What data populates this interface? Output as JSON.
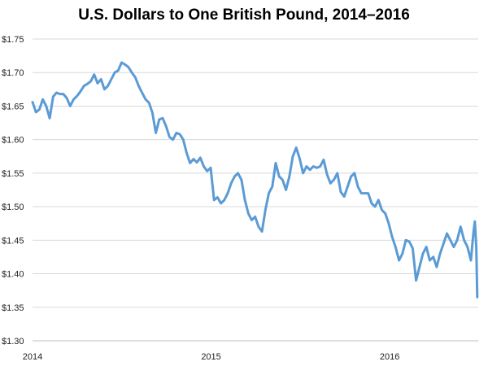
{
  "chart_data": {
    "type": "line",
    "title": "U.S. Dollars to One British Pound, 2014–2016",
    "xlabel": "",
    "ylabel": "",
    "x_tick_labels": [
      "2014",
      "2015",
      "2016"
    ],
    "y_tick_labels": [
      "$1.30",
      "$1.35",
      "$1.40",
      "$1.45",
      "$1.50",
      "$1.55",
      "$1.60",
      "$1.65",
      "$1.70",
      "$1.75"
    ],
    "ylim": [
      1.3,
      1.75
    ],
    "xlim": [
      "2014-01-01",
      "2016-06-30"
    ],
    "grid": "horizontal",
    "legend": "none",
    "series": [
      {
        "color": "#5B9BD5",
        "points": [
          [
            "2014-01-01",
            1.656
          ],
          [
            "2014-01-08",
            1.641
          ],
          [
            "2014-01-15",
            1.645
          ],
          [
            "2014-01-22",
            1.66
          ],
          [
            "2014-01-29",
            1.65
          ],
          [
            "2014-02-05",
            1.632
          ],
          [
            "2014-02-12",
            1.664
          ],
          [
            "2014-02-19",
            1.67
          ],
          [
            "2014-02-26",
            1.668
          ],
          [
            "2014-03-05",
            1.668
          ],
          [
            "2014-03-12",
            1.662
          ],
          [
            "2014-03-19",
            1.65
          ],
          [
            "2014-03-26",
            1.66
          ],
          [
            "2014-04-02",
            1.665
          ],
          [
            "2014-04-09",
            1.672
          ],
          [
            "2014-04-16",
            1.68
          ],
          [
            "2014-04-23",
            1.683
          ],
          [
            "2014-04-30",
            1.687
          ],
          [
            "2014-05-07",
            1.697
          ],
          [
            "2014-05-14",
            1.684
          ],
          [
            "2014-05-21",
            1.69
          ],
          [
            "2014-05-28",
            1.675
          ],
          [
            "2014-06-04",
            1.68
          ],
          [
            "2014-06-11",
            1.69
          ],
          [
            "2014-06-18",
            1.7
          ],
          [
            "2014-06-25",
            1.703
          ],
          [
            "2014-07-02",
            1.715
          ],
          [
            "2014-07-09",
            1.712
          ],
          [
            "2014-07-16",
            1.708
          ],
          [
            "2014-07-23",
            1.7
          ],
          [
            "2014-07-30",
            1.693
          ],
          [
            "2014-08-06",
            1.68
          ],
          [
            "2014-08-13",
            1.67
          ],
          [
            "2014-08-20",
            1.66
          ],
          [
            "2014-08-27",
            1.655
          ],
          [
            "2014-09-03",
            1.64
          ],
          [
            "2014-09-10",
            1.61
          ],
          [
            "2014-09-17",
            1.63
          ],
          [
            "2014-09-24",
            1.632
          ],
          [
            "2014-10-01",
            1.62
          ],
          [
            "2014-10-08",
            1.604
          ],
          [
            "2014-10-15",
            1.6
          ],
          [
            "2014-10-22",
            1.61
          ],
          [
            "2014-10-29",
            1.608
          ],
          [
            "2014-11-05",
            1.6
          ],
          [
            "2014-11-12",
            1.58
          ],
          [
            "2014-11-19",
            1.565
          ],
          [
            "2014-11-26",
            1.571
          ],
          [
            "2014-12-03",
            1.566
          ],
          [
            "2014-12-10",
            1.573
          ],
          [
            "2014-12-17",
            1.56
          ],
          [
            "2014-12-24",
            1.553
          ],
          [
            "2014-12-31",
            1.558
          ],
          [
            "2015-01-07",
            1.51
          ],
          [
            "2015-01-14",
            1.514
          ],
          [
            "2015-01-21",
            1.505
          ],
          [
            "2015-01-28",
            1.51
          ],
          [
            "2015-02-04",
            1.52
          ],
          [
            "2015-02-11",
            1.535
          ],
          [
            "2015-02-18",
            1.545
          ],
          [
            "2015-02-25",
            1.55
          ],
          [
            "2015-03-04",
            1.54
          ],
          [
            "2015-03-11",
            1.51
          ],
          [
            "2015-03-18",
            1.49
          ],
          [
            "2015-03-25",
            1.48
          ],
          [
            "2015-04-01",
            1.485
          ],
          [
            "2015-04-08",
            1.47
          ],
          [
            "2015-04-15",
            1.463
          ],
          [
            "2015-04-22",
            1.495
          ],
          [
            "2015-04-29",
            1.52
          ],
          [
            "2015-05-06",
            1.53
          ],
          [
            "2015-05-13",
            1.565
          ],
          [
            "2015-05-20",
            1.545
          ],
          [
            "2015-05-27",
            1.54
          ],
          [
            "2015-06-03",
            1.525
          ],
          [
            "2015-06-10",
            1.545
          ],
          [
            "2015-06-17",
            1.575
          ],
          [
            "2015-06-24",
            1.588
          ],
          [
            "2015-07-01",
            1.572
          ],
          [
            "2015-07-08",
            1.55
          ],
          [
            "2015-07-15",
            1.56
          ],
          [
            "2015-07-22",
            1.555
          ],
          [
            "2015-07-29",
            1.56
          ],
          [
            "2015-08-05",
            1.558
          ],
          [
            "2015-08-12",
            1.56
          ],
          [
            "2015-08-19",
            1.57
          ],
          [
            "2015-08-26",
            1.548
          ],
          [
            "2015-09-02",
            1.535
          ],
          [
            "2015-09-09",
            1.54
          ],
          [
            "2015-09-16",
            1.55
          ],
          [
            "2015-09-23",
            1.522
          ],
          [
            "2015-09-30",
            1.515
          ],
          [
            "2015-10-07",
            1.53
          ],
          [
            "2015-10-14",
            1.545
          ],
          [
            "2015-10-21",
            1.55
          ],
          [
            "2015-10-28",
            1.53
          ],
          [
            "2015-11-04",
            1.52
          ],
          [
            "2015-11-11",
            1.52
          ],
          [
            "2015-11-18",
            1.52
          ],
          [
            "2015-11-25",
            1.505
          ],
          [
            "2015-12-02",
            1.5
          ],
          [
            "2015-12-09",
            1.51
          ],
          [
            "2015-12-16",
            1.495
          ],
          [
            "2015-12-23",
            1.49
          ],
          [
            "2015-12-30",
            1.475
          ],
          [
            "2016-01-06",
            1.455
          ],
          [
            "2016-01-13",
            1.44
          ],
          [
            "2016-01-20",
            1.42
          ],
          [
            "2016-01-27",
            1.43
          ],
          [
            "2016-02-03",
            1.45
          ],
          [
            "2016-02-10",
            1.448
          ],
          [
            "2016-02-17",
            1.438
          ],
          [
            "2016-02-24",
            1.39
          ],
          [
            "2016-03-02",
            1.41
          ],
          [
            "2016-03-09",
            1.43
          ],
          [
            "2016-03-16",
            1.44
          ],
          [
            "2016-03-23",
            1.42
          ],
          [
            "2016-03-30",
            1.425
          ],
          [
            "2016-04-06",
            1.41
          ],
          [
            "2016-04-13",
            1.43
          ],
          [
            "2016-04-20",
            1.445
          ],
          [
            "2016-04-27",
            1.46
          ],
          [
            "2016-05-04",
            1.45
          ],
          [
            "2016-05-11",
            1.44
          ],
          [
            "2016-05-18",
            1.45
          ],
          [
            "2016-05-25",
            1.47
          ],
          [
            "2016-06-01",
            1.45
          ],
          [
            "2016-06-08",
            1.44
          ],
          [
            "2016-06-15",
            1.42
          ],
          [
            "2016-06-20",
            1.46
          ],
          [
            "2016-06-23",
            1.478
          ],
          [
            "2016-06-26",
            1.44
          ],
          [
            "2016-06-28",
            1.365
          ]
        ]
      }
    ]
  }
}
